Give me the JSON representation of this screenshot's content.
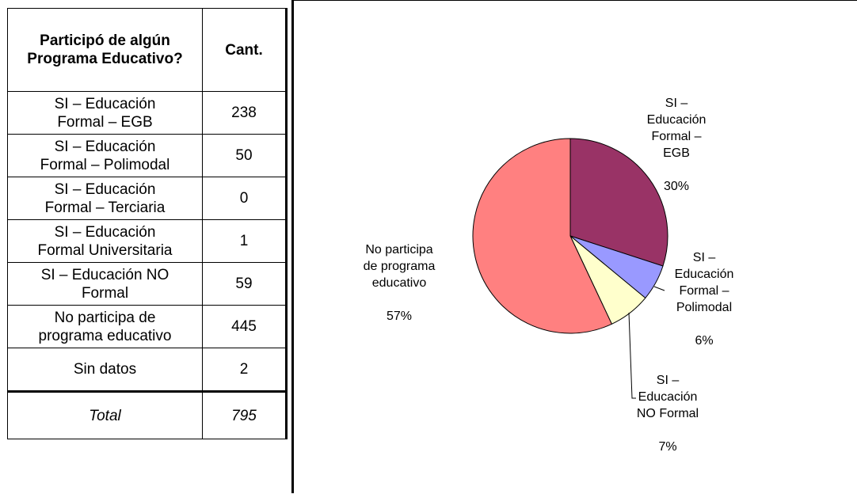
{
  "table": {
    "header": {
      "question": "Participó de algún Programa Educativo?",
      "count": "Cant."
    },
    "rows": [
      {
        "label": "SI – Educación\nFormal – EGB",
        "count": "238"
      },
      {
        "label": "SI – Educación\nFormal – Polimodal",
        "count": "50"
      },
      {
        "label": "SI – Educación\nFormal – Terciaria",
        "count": "0"
      },
      {
        "label": "SI – Educación\nFormal Universitaria",
        "count": "1"
      },
      {
        "label": "SI – Educación NO\nFormal",
        "count": "59"
      },
      {
        "label": "No participa de\nprograma educativo",
        "count": "445"
      },
      {
        "label": "Sin datos",
        "count": "2"
      }
    ],
    "total": {
      "label": "Total",
      "count": "795"
    }
  },
  "chart_data": {
    "type": "pie",
    "slices": [
      {
        "label": "SI –\nEducación\nFormal –\nEGB",
        "percent_label": "30%",
        "value": 30,
        "color": "#993366"
      },
      {
        "label": "SI –\nEducación\nFormal –\nPolimodal",
        "percent_label": "6%",
        "value": 6,
        "color": "#9999FF"
      },
      {
        "label": "SI –\nEducación\nNO Formal",
        "percent_label": "7%",
        "value": 7,
        "color": "#FFFFCC"
      },
      {
        "label": "No participa\nde programa\neducativo",
        "percent_label": "57%",
        "value": 57,
        "color": "#FF8080"
      }
    ]
  }
}
